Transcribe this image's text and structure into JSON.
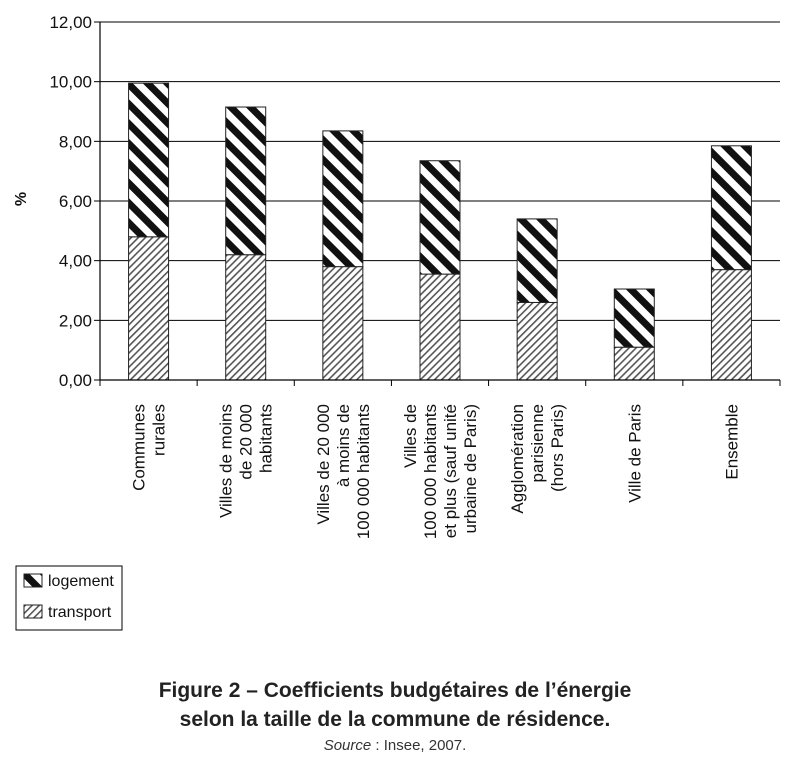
{
  "chart_data": {
    "type": "bar",
    "stacked": true,
    "ylabel": "%",
    "ylim": [
      0,
      12
    ],
    "yticks": [
      "0,00",
      "2,00",
      "4,00",
      "6,00",
      "8,00",
      "10,00",
      "12,00"
    ],
    "grid": true,
    "categories": [
      [
        "Communes",
        "rurales"
      ],
      [
        "Villes de moins",
        "de 20 000",
        "habitants"
      ],
      [
        "Villes de 20 000",
        "à moins de",
        "100 000 habitants"
      ],
      [
        "Villes de",
        "100 000 habitants",
        "et plus (sauf unité",
        "urbaine de Paris)"
      ],
      [
        "Agglomération",
        "parisienne",
        "(hors Paris)"
      ],
      [
        "Ville de Paris"
      ],
      [
        "Ensemble"
      ]
    ],
    "series": [
      {
        "name": "transport",
        "values": [
          4.8,
          4.2,
          3.8,
          3.55,
          2.6,
          1.1,
          3.7
        ]
      },
      {
        "name": "logement",
        "values": [
          5.15,
          4.95,
          4.55,
          3.8,
          2.8,
          1.95,
          4.15
        ]
      }
    ],
    "legend": {
      "placement": "bottom-left",
      "entries": [
        "logement",
        "transport"
      ]
    }
  },
  "caption": {
    "title_line1": "Figure 2 – Coefficients budgétaires de l’énergie",
    "title_line2": "selon la taille de la commune de résidence.",
    "source_label": "Source",
    "source_text": " : Insee, 2007."
  }
}
